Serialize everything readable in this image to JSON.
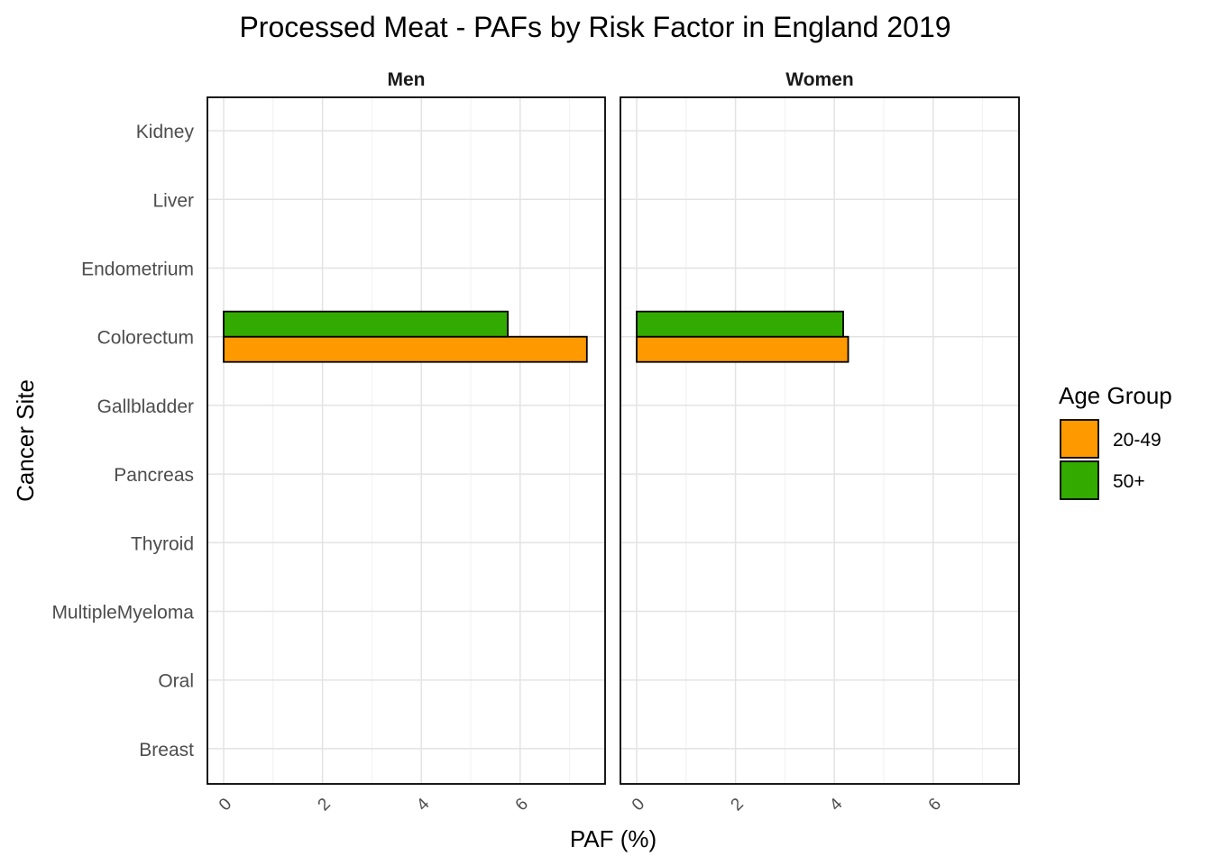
{
  "chart_data": {
    "type": "bar",
    "orientation": "horizontal",
    "title": "Processed Meat  - PAFs by Risk Factor in England 2019",
    "xlabel": "PAF (%)",
    "ylabel": "Cancer Site",
    "xlim": [
      0,
      7.5
    ],
    "xticks": [
      "0",
      "2",
      "4",
      "6"
    ],
    "grid": true,
    "categories": [
      "Breast",
      "Oral",
      "MultipleMyeloma",
      "Thyroid",
      "Pancreas",
      "Gallbladder",
      "Colorectum",
      "Endometrium",
      "Liver",
      "Kidney"
    ],
    "panels": [
      {
        "label": "Men",
        "series": [
          {
            "name": "20-49",
            "values": [
              0,
              0,
              0,
              0,
              0,
              0,
              7.35,
              0,
              0,
              0
            ]
          },
          {
            "name": "50+",
            "values": [
              0,
              0,
              0,
              0,
              0,
              0,
              5.75,
              0,
              0,
              0
            ]
          }
        ]
      },
      {
        "label": "Women",
        "series": [
          {
            "name": "20-49",
            "values": [
              0,
              0,
              0,
              0,
              0,
              0,
              4.28,
              0,
              0,
              0
            ]
          },
          {
            "name": "50+",
            "values": [
              0,
              0,
              0,
              0,
              0,
              0,
              4.18,
              0,
              0,
              0
            ]
          }
        ]
      }
    ],
    "legend": {
      "title": "Age Group",
      "position": "right",
      "items": [
        {
          "name": "20-49",
          "color": "#FF9900"
        },
        {
          "name": "50+",
          "color": "#33AA00"
        }
      ]
    }
  }
}
